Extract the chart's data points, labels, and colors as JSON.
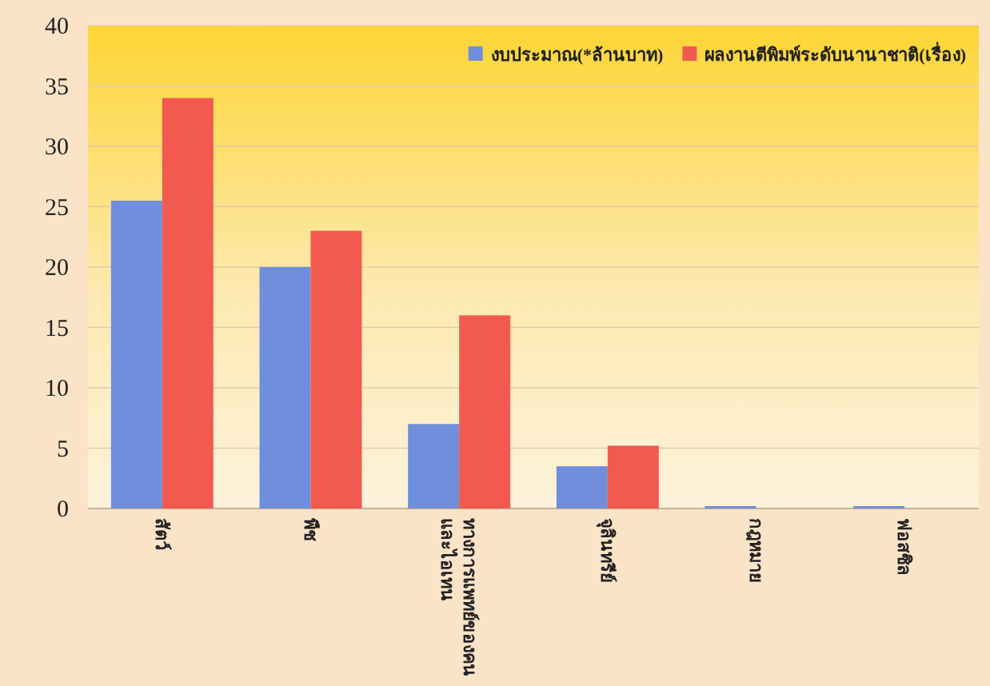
{
  "chart_data": {
    "type": "bar",
    "categories": [
      "สัตว์",
      "พืช",
      "ทางการแพทย์ของคน และไอเทน",
      "จุลินทรีย์",
      "กฎหมาย",
      "ฟอสซิล"
    ],
    "series": [
      {
        "name": "งบประมาณ(*ล้านบาท)",
        "color": "#6f8fdc",
        "values": [
          25.5,
          20,
          7,
          3.5,
          0.2,
          0.2
        ]
      },
      {
        "name": "ผลงานตีพิมพ์ระดับนานาชาติ(เรื่อง)",
        "color": "#f25a50",
        "values": [
          34,
          23,
          16,
          5.2,
          0,
          0
        ]
      }
    ],
    "ylim": [
      0,
      40
    ],
    "yticks": [
      0,
      5,
      10,
      15,
      20,
      25,
      30,
      35,
      40
    ],
    "grid": "y",
    "legend": "top right"
  }
}
